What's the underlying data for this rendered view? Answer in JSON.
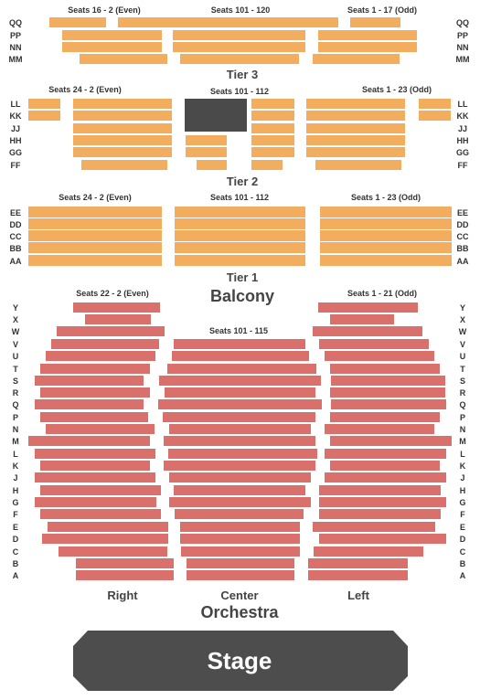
{
  "colors": {
    "tier_block": "#F2AD5E",
    "orchestra_block": "#D9706C",
    "booth": "#4A4A4A",
    "stage": "#4D4D4D",
    "text": "#333333"
  },
  "labels": {
    "tier3": "Tier 3",
    "tier2": "Tier 2",
    "tier1": "Tier 1",
    "balcony": "Balcony",
    "orchestra": "Orchestra",
    "stage": "Stage",
    "right": "Right",
    "center": "Center",
    "left": "Left"
  },
  "seat_labels": {
    "tier3_left": "Seats 16 - 2 (Even)",
    "tier3_center": "Seats 101 - 120",
    "tier3_right": "Seats 1 - 17 (Odd)",
    "tier2_left": "Seats 24 - 2 (Even)",
    "tier2_center": "Seats 101 - 112",
    "tier2_right": "Seats 1 - 23 (Odd)",
    "tier1_left": "Seats 24 - 2 (Even)",
    "tier1_center": "Seats 101 - 112",
    "tier1_right": "Seats 1 - 23 (Odd)",
    "orch_left": "Seats 22 - 2 (Even)",
    "orch_center": "Seats 101 - 115",
    "orch_right": "Seats 1 - 21 (Odd)"
  },
  "rows": {
    "tier3": [
      "QQ",
      "PP",
      "NN",
      "MM"
    ],
    "tier2": [
      "LL",
      "KK",
      "JJ",
      "HH",
      "GG",
      "FF"
    ],
    "tier1": [
      "EE",
      "DD",
      "CC",
      "BB",
      "AA"
    ],
    "orchestra": [
      "Y",
      "X",
      "W",
      "V",
      "U",
      "T",
      "S",
      "R",
      "Q",
      "P",
      "N",
      "M",
      "L",
      "K",
      "J",
      "H",
      "G",
      "F",
      "E",
      "D",
      "C",
      "B",
      "A"
    ]
  }
}
